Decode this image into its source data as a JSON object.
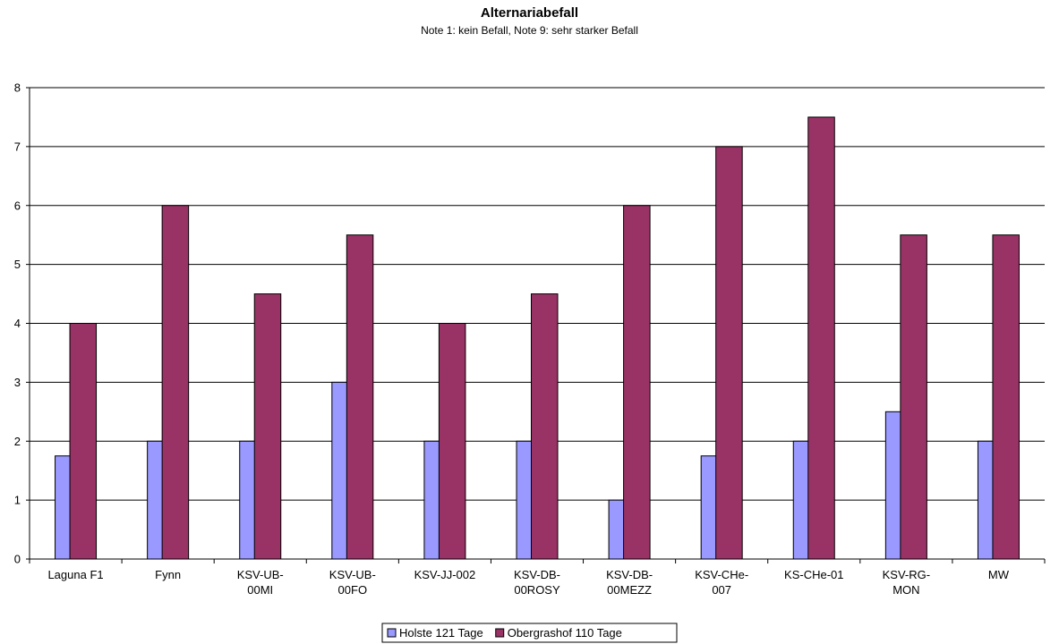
{
  "chart_data": {
    "type": "bar",
    "title": "Alternariabefall",
    "subtitle": "Note 1: kein Befall, Note 9: sehr starker Befall",
    "categories": [
      [
        "Laguna F1"
      ],
      [
        "Fynn"
      ],
      [
        "KSV-UB-",
        "00MI"
      ],
      [
        "KSV-UB-",
        "00FO"
      ],
      [
        "KSV-JJ-002"
      ],
      [
        "KSV-DB-",
        "00ROSY"
      ],
      [
        "KSV-DB-",
        "00MEZZ"
      ],
      [
        "KSV-CHe-",
        "007"
      ],
      [
        "KS-CHe-01"
      ],
      [
        "KSV-RG-",
        "MON"
      ],
      [
        "MW"
      ]
    ],
    "series": [
      {
        "name": "Holste 121 Tage",
        "color": "#9999ff",
        "values": [
          1.75,
          2,
          2,
          3,
          2,
          2,
          1,
          1.75,
          2,
          2.5,
          2
        ]
      },
      {
        "name": "Obergrashof 110 Tage",
        "color": "#993366",
        "values": [
          4,
          6,
          4.5,
          5.5,
          4,
          4.5,
          6,
          7,
          7.5,
          5.5,
          5.5
        ]
      }
    ],
    "ylim": [
      0,
      8
    ],
    "yticks": [
      0,
      1,
      2,
      3,
      4,
      5,
      6,
      7,
      8
    ],
    "grid": true,
    "legend": "bottom-center"
  }
}
